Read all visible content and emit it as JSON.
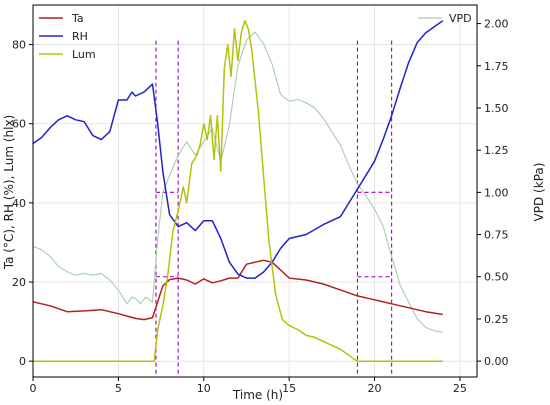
{
  "chart_data": {
    "type": "line",
    "xlabel": "Time (h)",
    "ylabel_left": "Ta (°C), RH (%), Lum (hlx)",
    "ylabel_right": "VPD (kPa)",
    "xlim": [
      0,
      26
    ],
    "ylim_left": [
      -4,
      90
    ],
    "ylim_right": [
      -0.094,
      2.11
    ],
    "x_ticks": [
      "0",
      "5",
      "10",
      "15",
      "20",
      "25"
    ],
    "y_ticks_left": [
      "0",
      "20",
      "40",
      "60",
      "80"
    ],
    "y_ticks_right": [
      "0.00",
      "0.25",
      "0.50",
      "0.75",
      "1.00",
      "1.25",
      "1.50",
      "1.75",
      "2.00"
    ],
    "grid": true,
    "legend_left": {
      "placement": "top-left",
      "entries": [
        "Ta",
        "RH",
        "Lum"
      ]
    },
    "legend_right": {
      "placement": "top-right",
      "entries": [
        "VPD"
      ]
    },
    "series": [
      {
        "name": "Ta",
        "axis": "left",
        "color": "#b22222",
        "x": [
          0,
          1,
          2,
          3,
          4,
          5,
          6,
          6.5,
          7,
          7.3,
          7.6,
          8,
          8.5,
          9,
          9.5,
          10,
          10.5,
          11,
          11.5,
          12,
          12.5,
          13,
          13.5,
          14,
          14.5,
          15,
          16,
          17,
          18,
          19,
          20,
          21,
          22,
          23,
          24
        ],
        "y": [
          15,
          14,
          12.5,
          12.7,
          13,
          12,
          10.8,
          10.5,
          11,
          15,
          19,
          20.6,
          21,
          20.5,
          19.5,
          20.8,
          19.8,
          20.3,
          21,
          21,
          24.5,
          25,
          25.5,
          25,
          23,
          21,
          20.5,
          19.5,
          18,
          16.5,
          15.5,
          14.5,
          13.5,
          12.5,
          11.8
        ]
      },
      {
        "name": "RH",
        "axis": "left",
        "color": "#2222cc",
        "x": [
          0,
          0.5,
          1,
          1.5,
          2,
          2.5,
          3,
          3.5,
          4,
          4.5,
          5,
          5.5,
          5.8,
          6,
          6.5,
          7,
          7.3,
          7.6,
          8,
          8.5,
          9,
          9.5,
          10,
          10.5,
          11,
          11.5,
          12,
          12.5,
          13,
          13.5,
          14,
          14.5,
          15,
          16,
          17,
          18,
          18.5,
          19,
          19.5,
          20,
          20.5,
          21,
          21.5,
          22,
          22.5,
          23,
          23.5,
          24
        ],
        "y": [
          55,
          56.5,
          59,
          61,
          62,
          61,
          60.5,
          57,
          56,
          58,
          66,
          66,
          68,
          67,
          68,
          70,
          60,
          48,
          37,
          34,
          35,
          33,
          35.5,
          35.5,
          31,
          25,
          22,
          21,
          21,
          22.5,
          25,
          28.5,
          31,
          32,
          34.5,
          36.5,
          40,
          43.5,
          47,
          50.5,
          56,
          62,
          69,
          75.5,
          80.5,
          83,
          84.5,
          86
        ]
      },
      {
        "name": "Lum",
        "axis": "left",
        "color": "#b5c20a",
        "x": [
          0,
          6.8,
          7.1,
          7.3,
          7.6,
          7.9,
          8.2,
          8.5,
          8.8,
          9,
          9.3,
          9.6,
          9.8,
          10,
          10.2,
          10.4,
          10.6,
          10.8,
          11,
          11.2,
          11.4,
          11.6,
          11.8,
          12,
          12.2,
          12.4,
          12.6,
          12.8,
          13,
          13.2,
          13.5,
          13.8,
          14.2,
          14.6,
          15,
          15.5,
          16,
          16.5,
          17,
          17.5,
          18,
          18.5,
          18.8,
          19,
          24
        ],
        "y": [
          0,
          0,
          0,
          8,
          14,
          22,
          33,
          38,
          44,
          40,
          50,
          52,
          55,
          60,
          56,
          62,
          51,
          62,
          48,
          74,
          80,
          72,
          84,
          76,
          83,
          86,
          84,
          79,
          71,
          63,
          47,
          31,
          17,
          10.5,
          9,
          8,
          6.5,
          6,
          5,
          4,
          3,
          1.5,
          0.5,
          0,
          0
        ]
      },
      {
        "name": "VPD",
        "axis": "right",
        "color": "#a8cfa8",
        "x": [
          0,
          0.5,
          1,
          1.5,
          2,
          2.5,
          3,
          3.5,
          4,
          4.5,
          5,
          5.5,
          5.8,
          6,
          6.3,
          6.6,
          7,
          7.3,
          7.6,
          8,
          8.5,
          9,
          9.5,
          10,
          10.5,
          11,
          11.5,
          12,
          12.5,
          13,
          13.5,
          14,
          14.5,
          15,
          15.5,
          16,
          16.5,
          17,
          17.5,
          18,
          18.5,
          19,
          19.5,
          20,
          20.5,
          21,
          21.5,
          22,
          22.5,
          23,
          23.5,
          24
        ],
        "y": [
          0.68,
          0.66,
          0.62,
          0.56,
          0.53,
          0.51,
          0.52,
          0.51,
          0.52,
          0.48,
          0.42,
          0.34,
          0.38,
          0.37,
          0.34,
          0.38,
          0.35,
          0.72,
          1.0,
          1.1,
          1.22,
          1.3,
          1.22,
          1.3,
          1.38,
          1.18,
          1.4,
          1.75,
          1.9,
          1.95,
          1.88,
          1.76,
          1.58,
          1.54,
          1.55,
          1.53,
          1.5,
          1.44,
          1.36,
          1.28,
          1.16,
          1.05,
          0.98,
          0.9,
          0.8,
          0.62,
          0.45,
          0.35,
          0.25,
          0.2,
          0.18,
          0.17
        ]
      }
    ],
    "guide_lines": {
      "color": "#9900cc",
      "vertical_x": [
        7.2,
        8.5,
        19,
        21
      ],
      "horizontal_segments": [
        {
          "x1": 7.2,
          "x2": 8.5,
          "axis": "right",
          "y": 1.0
        },
        {
          "x1": 7.2,
          "x2": 8.5,
          "axis": "right",
          "y": 0.5
        },
        {
          "x1": 19,
          "x2": 21,
          "axis": "right",
          "y": 1.0
        },
        {
          "x1": 19,
          "x2": 21,
          "axis": "right",
          "y": 0.5
        }
      ]
    }
  }
}
